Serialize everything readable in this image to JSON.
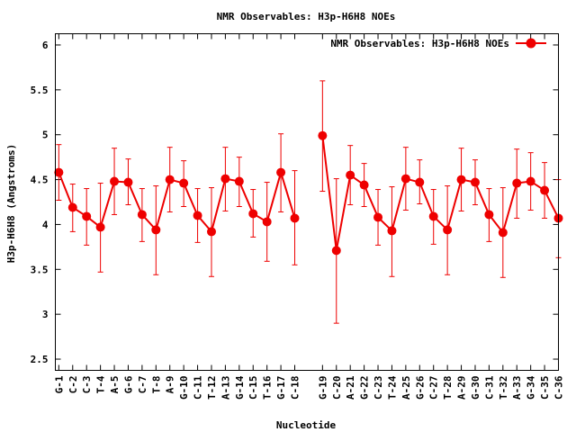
{
  "chart_data": {
    "type": "line",
    "title": "NMR Observables: H3p-H6H8 NOEs",
    "xlabel": "Nucleotide",
    "ylabel": "H3p-H6H8 (Angstroms)",
    "ylim": [
      2.375,
      6.125
    ],
    "yticks": [
      2.5,
      3,
      3.5,
      4,
      4.5,
      5,
      5.5,
      6
    ],
    "ytick_labels": [
      "2.5",
      "3",
      "3.5",
      "4",
      "4.5",
      "5",
      "5.5",
      "6"
    ],
    "grid": false,
    "legend_position": "top-right",
    "series": [
      {
        "name": "NMR Observables: H3p-H6H8 NOEs",
        "color": "#ee0000",
        "segments": [
          {
            "x": [
              1,
              2,
              3,
              4,
              5,
              6,
              7,
              8,
              9,
              10,
              11,
              12,
              13,
              14,
              15,
              16,
              17,
              18
            ],
            "categories": [
              "G-1",
              "C-2",
              "C-3",
              "T-4",
              "A-5",
              "G-6",
              "C-7",
              "T-8",
              "A-9",
              "G-10",
              "C-11",
              "T-12",
              "A-13",
              "G-14",
              "C-15",
              "T-16",
              "G-17",
              "C-18"
            ],
            "values": [
              4.58,
              4.19,
              4.09,
              3.97,
              4.48,
              4.47,
              4.11,
              3.94,
              4.5,
              4.46,
              4.1,
              3.92,
              4.51,
              4.48,
              4.12,
              4.03,
              4.58,
              4.07
            ],
            "err_low": [
              4.27,
              3.92,
              3.77,
              3.47,
              4.11,
              4.22,
              3.81,
              3.44,
              4.14,
              4.2,
              3.8,
              3.42,
              4.15,
              4.2,
              3.86,
              3.59,
              4.14,
              3.55
            ],
            "err_high": [
              4.89,
              4.45,
              4.4,
              4.46,
              4.85,
              4.73,
              4.4,
              4.43,
              4.86,
              4.71,
              4.4,
              4.41,
              4.86,
              4.75,
              4.39,
              4.47,
              5.01,
              4.6
            ]
          },
          {
            "x": [
              20,
              21,
              22,
              23,
              24,
              25,
              26,
              27,
              28,
              29,
              30,
              31,
              32,
              33,
              34,
              35,
              36,
              37
            ],
            "categories": [
              "G-19",
              "C-20",
              "A-21",
              "G-22",
              "C-23",
              "T-24",
              "A-25",
              "G-26",
              "C-27",
              "T-28",
              "A-29",
              "G-30",
              "C-31",
              "T-32",
              "A-33",
              "G-34",
              "C-35",
              "C-36"
            ],
            "values": [
              4.99,
              3.71,
              4.55,
              4.44,
              4.08,
              3.93,
              4.51,
              4.47,
              4.09,
              3.94,
              4.5,
              4.47,
              4.11,
              3.91,
              4.46,
              4.48,
              4.38,
              4.07
            ],
            "err_low": [
              4.37,
              2.9,
              4.22,
              4.2,
              3.77,
              3.42,
              4.16,
              4.23,
              3.78,
              3.44,
              4.15,
              4.22,
              3.81,
              3.41,
              4.07,
              4.16,
              4.07,
              3.63
            ],
            "err_high": [
              5.6,
              4.51,
              4.88,
              4.68,
              4.39,
              4.42,
              4.86,
              4.72,
              4.39,
              4.43,
              4.85,
              4.72,
              4.4,
              4.41,
              4.84,
              4.8,
              4.69,
              4.5
            ]
          }
        ]
      }
    ]
  }
}
